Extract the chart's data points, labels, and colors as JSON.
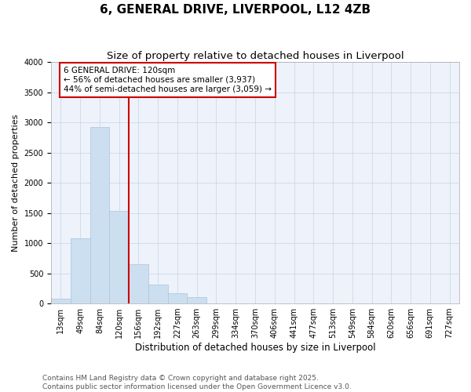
{
  "title": "6, GENERAL DRIVE, LIVERPOOL, L12 4ZB",
  "subtitle": "Size of property relative to detached houses in Liverpool",
  "xlabel": "Distribution of detached houses by size in Liverpool",
  "ylabel": "Number of detached properties",
  "bar_labels": [
    "13sqm",
    "49sqm",
    "84sqm",
    "120sqm",
    "156sqm",
    "192sqm",
    "227sqm",
    "263sqm",
    "299sqm",
    "334sqm",
    "370sqm",
    "406sqm",
    "441sqm",
    "477sqm",
    "513sqm",
    "549sqm",
    "584sqm",
    "620sqm",
    "656sqm",
    "691sqm",
    "727sqm"
  ],
  "bar_values": [
    75,
    1080,
    2920,
    1530,
    650,
    310,
    175,
    110,
    0,
    0,
    0,
    0,
    0,
    0,
    0,
    0,
    0,
    0,
    0,
    0,
    0
  ],
  "bar_color": "#ccdff0",
  "bar_edge_color": "#aac4dd",
  "grid_color": "#c5d5e8",
  "background_color": "#eef2fa",
  "vline_color": "#cc0000",
  "vline_index": 3,
  "annotation_text": "6 GENERAL DRIVE: 120sqm\n← 56% of detached houses are smaller (3,937)\n44% of semi-detached houses are larger (3,059) →",
  "annotation_box_color": "#cc0000",
  "ylim": [
    0,
    4000
  ],
  "yticks": [
    0,
    500,
    1000,
    1500,
    2000,
    2500,
    3000,
    3500,
    4000
  ],
  "footer_line1": "Contains HM Land Registry data © Crown copyright and database right 2025.",
  "footer_line2": "Contains public sector information licensed under the Open Government Licence v3.0.",
  "title_fontsize": 11,
  "subtitle_fontsize": 9.5,
  "tick_fontsize": 7,
  "ylabel_fontsize": 8,
  "xlabel_fontsize": 8.5,
  "footer_fontsize": 6.5,
  "annotation_fontsize": 7.5
}
